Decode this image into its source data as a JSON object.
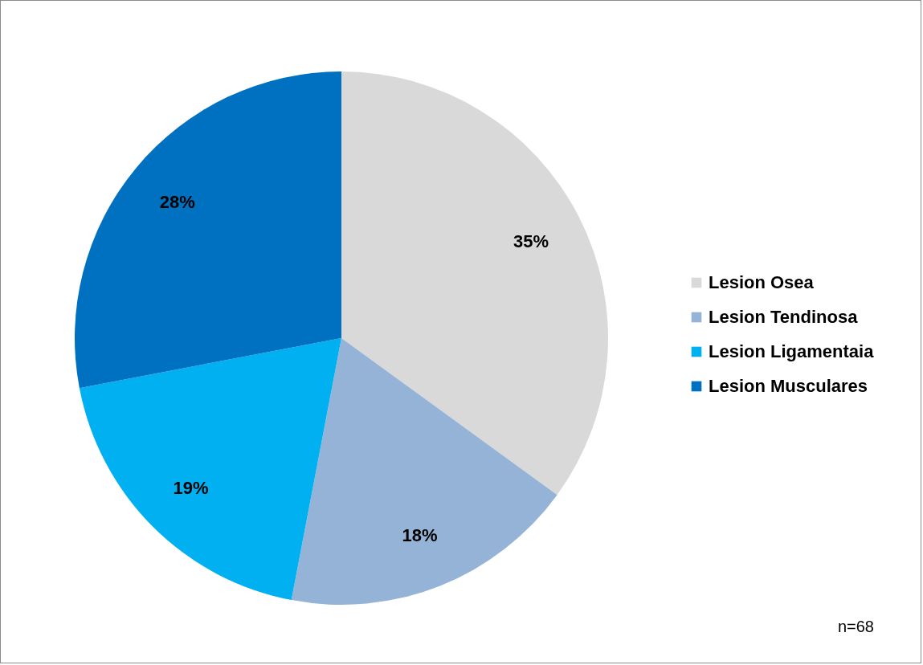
{
  "chart_data": {
    "type": "pie",
    "categories": [
      "Lesion Osea",
      "Lesion Tendinosa",
      "Lesion Ligamentaia",
      "Lesion Musculares"
    ],
    "values": [
      35,
      18,
      19,
      28
    ],
    "colors": [
      "#d9d9d9",
      "#95b3d7",
      "#00b0f0",
      "#0070c0"
    ],
    "value_labels": [
      "35%",
      "18%",
      "19%",
      "28%"
    ],
    "legend": "right",
    "annotations": [
      "n=68"
    ]
  }
}
